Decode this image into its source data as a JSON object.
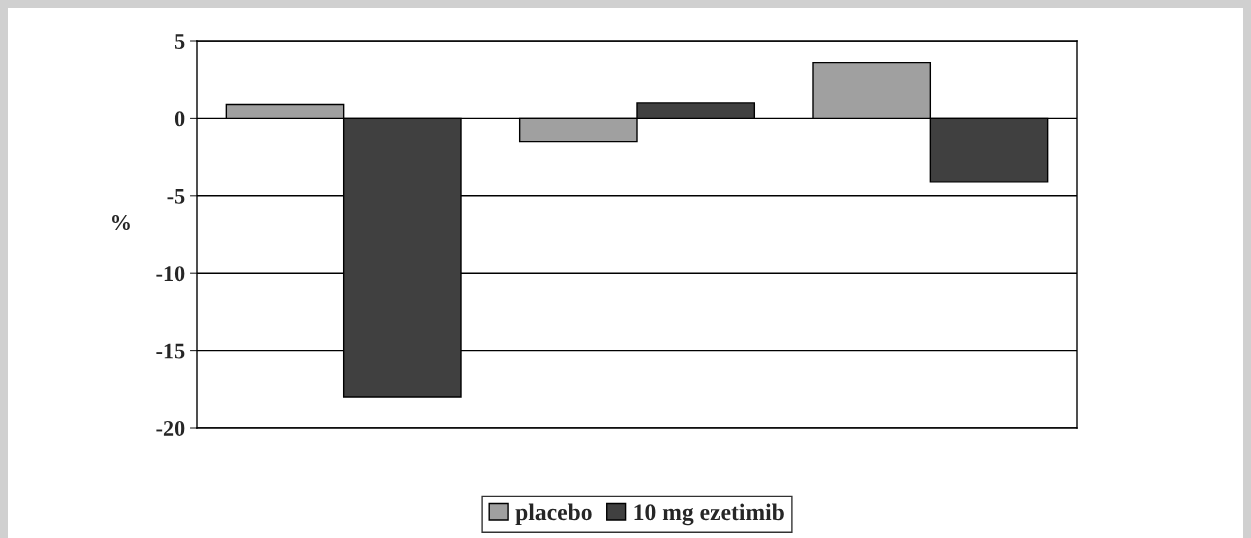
{
  "chart_data": {
    "type": "bar",
    "ylabel": "%",
    "categories": [
      null,
      null,
      null
    ],
    "series": [
      {
        "name": "placebo",
        "color": "#a0a0a0",
        "values": [
          0.9,
          -1.5,
          3.6
        ]
      },
      {
        "name": "10 mg ezetimib",
        "color": "#404040",
        "values": [
          -18.0,
          1.0,
          -4.1
        ]
      }
    ],
    "ylim": [
      -20,
      5
    ],
    "yticks": [
      -20,
      -15,
      -10,
      -5,
      0,
      5
    ],
    "grid": "y",
    "legend": "bottom"
  }
}
